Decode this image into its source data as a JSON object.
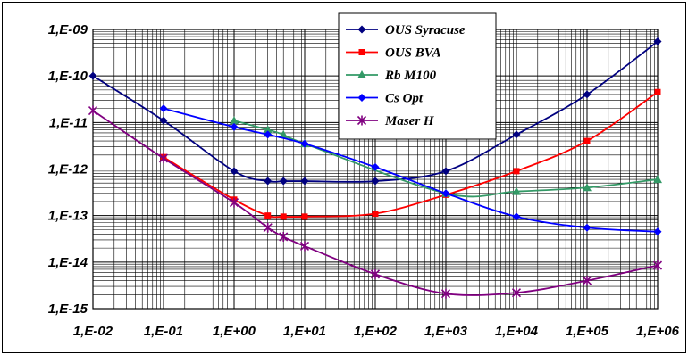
{
  "chart_data": {
    "type": "line",
    "title": "",
    "xlabel": "",
    "ylabel": "",
    "x_scale": "log",
    "y_scale": "log",
    "xlim": [
      0.01,
      1000000
    ],
    "ylim": [
      1e-15,
      1e-09
    ],
    "x_ticks": [
      0.01,
      0.1,
      1,
      10,
      100,
      1000,
      10000,
      100000,
      1000000
    ],
    "x_tick_labels": [
      "1,E-02",
      "1,E-01",
      "1,E+00",
      "1,E+01",
      "1,E+02",
      "1,E+03",
      "1,E+04",
      "1,E+05",
      "1,E+06"
    ],
    "y_ticks": [
      1e-09,
      1e-10,
      1e-11,
      1e-12,
      1e-13,
      1e-14,
      1e-15
    ],
    "y_tick_labels": [
      "1,E-09",
      "1,E-10",
      "1,E-11",
      "1,E-12",
      "1,E-13",
      "1,E-14",
      "1,E-15"
    ],
    "grid": true,
    "legend_position": "top-center",
    "series": [
      {
        "name": "OUS Syracuse",
        "color": "#000080",
        "marker": "diamond",
        "points": [
          [
            0.01,
            1e-10
          ],
          [
            0.1,
            1.1e-11
          ],
          [
            1,
            9e-13
          ],
          [
            3,
            5.5e-13
          ],
          [
            5,
            5.5e-13
          ],
          [
            10,
            5.5e-13
          ],
          [
            100,
            5.5e-13
          ],
          [
            1000,
            9e-13
          ],
          [
            10000,
            5.5e-12
          ],
          [
            100000,
            4e-11
          ],
          [
            1000000,
            5.5e-10
          ]
        ]
      },
      {
        "name": "OUS BVA",
        "color": "#ff0000",
        "marker": "square",
        "points": [
          [
            0.1,
            1.8e-12
          ],
          [
            1,
            2.2e-13
          ],
          [
            3,
            1e-13
          ],
          [
            5,
            9.5e-14
          ],
          [
            10,
            9.5e-14
          ],
          [
            100,
            1.1e-13
          ],
          [
            1000,
            2.8e-13
          ],
          [
            10000,
            9e-13
          ],
          [
            100000,
            4e-12
          ],
          [
            1000000,
            4.5e-11
          ]
        ]
      },
      {
        "name": "Rb M100",
        "color": "#339966",
        "marker": "triangle",
        "points": [
          [
            1,
            1.1e-11
          ],
          [
            3,
            7e-12
          ],
          [
            5,
            5.5e-12
          ],
          [
            10,
            3.5e-12
          ],
          [
            1000,
            3e-13
          ],
          [
            10000,
            3.3e-13
          ],
          [
            100000,
            4e-13
          ],
          [
            1000000,
            6e-13
          ]
        ]
      },
      {
        "name": "Cs Opt",
        "color": "#0000ff",
        "marker": "diamond",
        "points": [
          [
            0.1,
            2e-11
          ],
          [
            1,
            8e-12
          ],
          [
            3,
            5.5e-12
          ],
          [
            10,
            3.5e-12
          ],
          [
            100,
            1.1e-12
          ],
          [
            1000,
            3e-13
          ],
          [
            10000,
            9.5e-14
          ],
          [
            100000,
            5.5e-14
          ],
          [
            1000000,
            4.5e-14
          ]
        ]
      },
      {
        "name": "Maser H",
        "color": "#800080",
        "marker": "star",
        "points": [
          [
            0.01,
            1.8e-11
          ],
          [
            0.1,
            1.7e-12
          ],
          [
            1,
            1.9e-13
          ],
          [
            3,
            5.5e-14
          ],
          [
            5,
            3.5e-14
          ],
          [
            10,
            2.2e-14
          ],
          [
            100,
            5.5e-15
          ],
          [
            1000,
            2.1e-15
          ],
          [
            10000,
            2.2e-15
          ],
          [
            100000,
            4e-15
          ],
          [
            1000000,
            8.5e-15
          ]
        ]
      }
    ]
  }
}
